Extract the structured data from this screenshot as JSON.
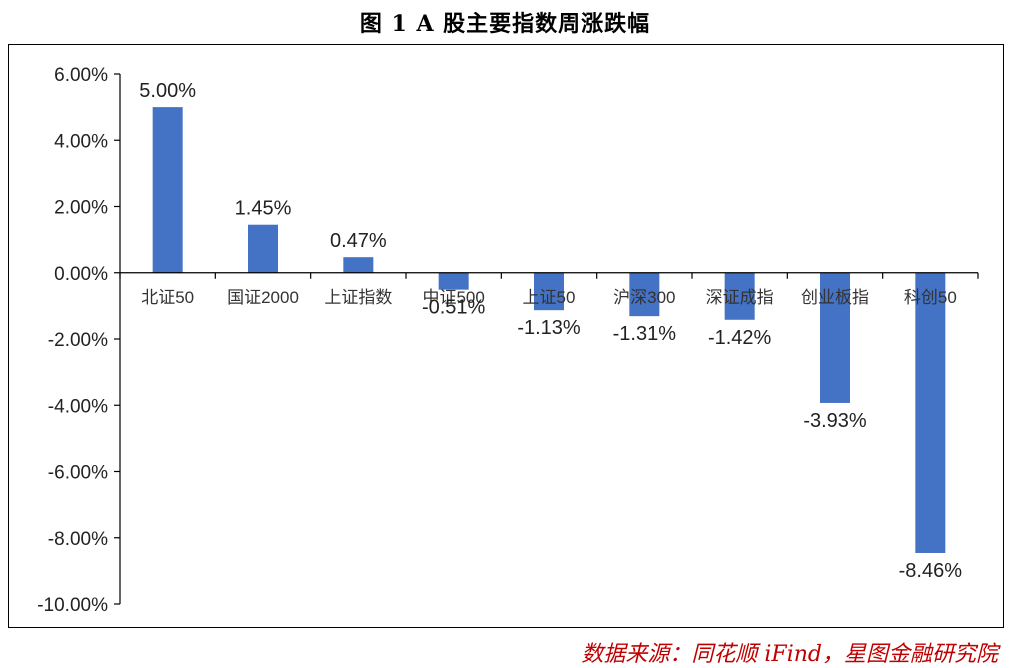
{
  "chart_data": {
    "type": "bar",
    "title": "图 1 A 股主要指数周涨跌幅",
    "categories": [
      "北证50",
      "国证2000",
      "上证指数",
      "中证500",
      "上证50",
      "沪深300",
      "深证成指",
      "创业板指",
      "科创50"
    ],
    "values": [
      5.0,
      1.45,
      0.47,
      -0.51,
      -1.13,
      -1.31,
      -1.42,
      -3.93,
      -8.46
    ],
    "data_labels": [
      "5.00%",
      "1.45%",
      "0.47%",
      "-0.51%",
      "-1.13%",
      "-1.31%",
      "-1.42%",
      "-3.93%",
      "-8.46%"
    ],
    "yticks": [
      6,
      4,
      2,
      0,
      -2,
      -4,
      -6,
      -8,
      -10
    ],
    "ytick_labels": [
      "6.00%",
      "4.00%",
      "2.00%",
      "0.00%",
      "-2.00%",
      "-4.00%",
      "-6.00%",
      "-8.00%",
      "-10.00%"
    ],
    "ylim": [
      -10,
      6
    ],
    "xlabel": "",
    "ylabel": "",
    "grid": false,
    "bar_color": "#4472C4"
  },
  "source": "数据来源：同花顺 iFind，星图金融研究院"
}
